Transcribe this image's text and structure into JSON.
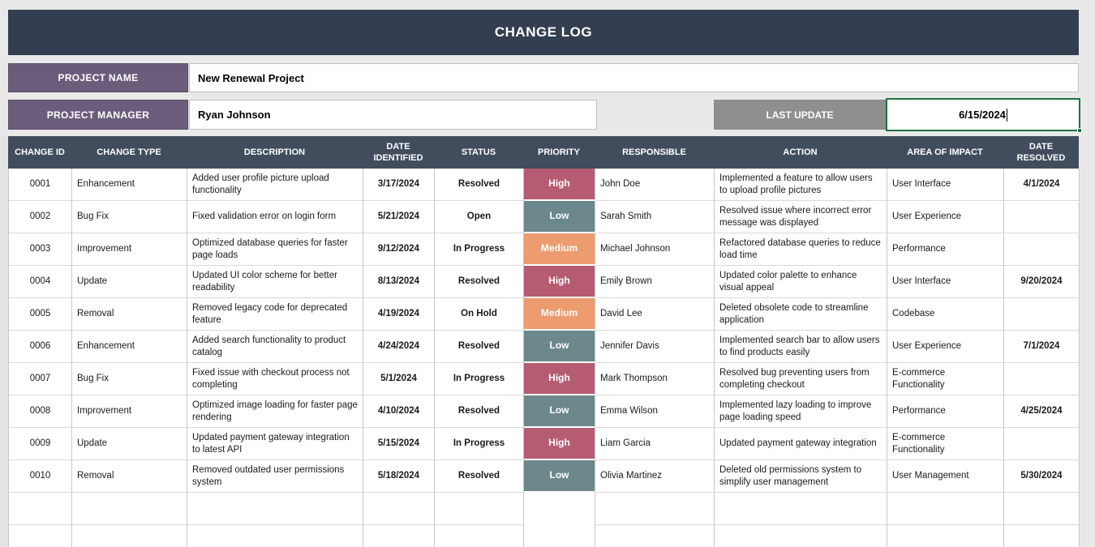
{
  "app": {
    "title": "CHANGE LOG"
  },
  "fields": {
    "project_name": {
      "label": "PROJECT NAME",
      "value": "New Renewal Project"
    },
    "project_manager": {
      "label": "PROJECT MANAGER",
      "value": "Ryan Johnson"
    },
    "last_update": {
      "label": "LAST UPDATE",
      "value": "6/15/2024"
    }
  },
  "colors": {
    "title_bar": "#333F50",
    "table_header": "#414C5D",
    "label_purple": "#6C5C7C",
    "label_gray": "#8F8F8F",
    "selection_green": "#1E7145",
    "priority": {
      "High": "#B55C72",
      "Medium": "#EC9C6E",
      "Low": "#6C888C"
    }
  },
  "table": {
    "columns": [
      {
        "key": "id",
        "label": "CHANGE ID"
      },
      {
        "key": "type",
        "label": "CHANGE TYPE"
      },
      {
        "key": "description",
        "label": "DESCRIPTION"
      },
      {
        "key": "date_identified",
        "label": "DATE IDENTIFIED"
      },
      {
        "key": "status",
        "label": "STATUS"
      },
      {
        "key": "priority",
        "label": "PRIORITY"
      },
      {
        "key": "responsible",
        "label": "RESPONSIBLE"
      },
      {
        "key": "action",
        "label": "ACTION"
      },
      {
        "key": "area",
        "label": "AREA OF IMPACT"
      },
      {
        "key": "date_resolved",
        "label": "DATE RESOLVED"
      }
    ],
    "rows": [
      {
        "id": "0001",
        "type": "Enhancement",
        "description": "Added user profile picture upload functionality",
        "date_identified": "3/17/2024",
        "status": "Resolved",
        "priority": "High",
        "responsible": "John Doe",
        "action": "Implemented a feature to allow users to upload profile pictures",
        "area": "User Interface",
        "date_resolved": "4/1/2024"
      },
      {
        "id": "0002",
        "type": "Bug Fix",
        "description": "Fixed validation error on login form",
        "date_identified": "5/21/2024",
        "status": "Open",
        "priority": "Low",
        "responsible": "Sarah Smith",
        "action": "Resolved issue where incorrect error message was displayed",
        "area": "User Experience",
        "date_resolved": ""
      },
      {
        "id": "0003",
        "type": "Improvement",
        "description": "Optimized database queries for faster page loads",
        "date_identified": "9/12/2024",
        "status": "In Progress",
        "priority": "Medium",
        "responsible": "Michael Johnson",
        "action": "Refactored database queries to reduce load time",
        "area": "Performance",
        "date_resolved": ""
      },
      {
        "id": "0004",
        "type": "Update",
        "description": "Updated UI color scheme for better readability",
        "date_identified": "8/13/2024",
        "status": "Resolved",
        "priority": "High",
        "responsible": "Emily Brown",
        "action": "Updated color palette to enhance visual appeal",
        "area": "User Interface",
        "date_resolved": "9/20/2024"
      },
      {
        "id": "0005",
        "type": "Removal",
        "description": "Removed legacy code for deprecated feature",
        "date_identified": "4/19/2024",
        "status": "On Hold",
        "priority": "Medium",
        "responsible": "David Lee",
        "action": "Deleted obsolete code to streamline application",
        "area": "Codebase",
        "date_resolved": ""
      },
      {
        "id": "0006",
        "type": "Enhancement",
        "description": "Added search functionality to product catalog",
        "date_identified": "4/24/2024",
        "status": "Resolved",
        "priority": "Low",
        "responsible": "Jennifer Davis",
        "action": "Implemented search bar to allow users to find products easily",
        "area": "User Experience",
        "date_resolved": "7/1/2024"
      },
      {
        "id": "0007",
        "type": "Bug Fix",
        "description": "Fixed issue with checkout process not completing",
        "date_identified": "5/1/2024",
        "status": "In Progress",
        "priority": "High",
        "responsible": "Mark Thompson",
        "action": "Resolved bug preventing users from completing checkout",
        "area": "E-commerce Functionality",
        "date_resolved": ""
      },
      {
        "id": "0008",
        "type": "Improvement",
        "description": "Optimized image loading for faster page rendering",
        "date_identified": "4/10/2024",
        "status": "Resolved",
        "priority": "Low",
        "responsible": "Emma Wilson",
        "action": "Implemented lazy loading to improve page loading speed",
        "area": "Performance",
        "date_resolved": "4/25/2024"
      },
      {
        "id": "0009",
        "type": "Update",
        "description": "Updated payment gateway integration to latest API",
        "date_identified": "5/15/2024",
        "status": "In Progress",
        "priority": "High",
        "responsible": "Liam Garcia",
        "action": "Updated payment gateway integration",
        "area": "E-commerce Functionality",
        "date_resolved": ""
      },
      {
        "id": "0010",
        "type": "Removal",
        "description": "Removed outdated user permissions system",
        "date_identified": "5/18/2024",
        "status": "Resolved",
        "priority": "Low",
        "responsible": "Olivia Martinez",
        "action": "Deleted old permissions system to simplify user management",
        "area": "User Management",
        "date_resolved": "5/30/2024"
      }
    ],
    "empty_rows": 2
  }
}
